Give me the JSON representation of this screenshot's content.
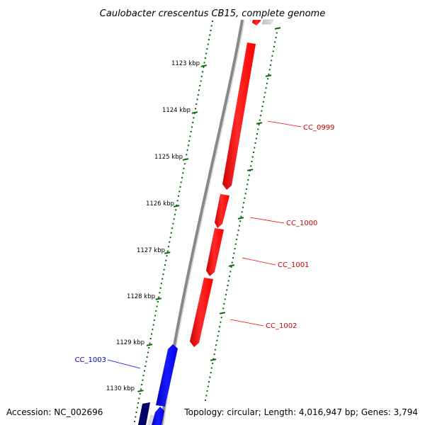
{
  "title": "Caulobacter crescentus CB15, complete genome",
  "accession": "Accession: NC_002696",
  "topology": "Topology: circular; Length: 4,016,947 bp; Genes: 3,794",
  "colors": {
    "forward_gene": "#ff0000",
    "reverse_gene": "#0000ff",
    "ticks": "#006600",
    "backbone": "#888888"
  },
  "ticks": [
    {
      "label": "1123 kbp"
    },
    {
      "label": "1124 kbp"
    },
    {
      "label": "1125 kbp"
    },
    {
      "label": "1126 kbp"
    },
    {
      "label": "1127 kbp"
    },
    {
      "label": "1128 kbp"
    },
    {
      "label": "1129 kbp"
    },
    {
      "label": "1130 kbp"
    }
  ],
  "genes": [
    {
      "label": "CC_0999",
      "strand": "forward"
    },
    {
      "label": "CC_1000",
      "strand": "forward"
    },
    {
      "label": "CC_1001",
      "strand": "forward"
    },
    {
      "label": "CC_1002",
      "strand": "forward"
    },
    {
      "label": "CC_1003",
      "strand": "reverse"
    }
  ]
}
